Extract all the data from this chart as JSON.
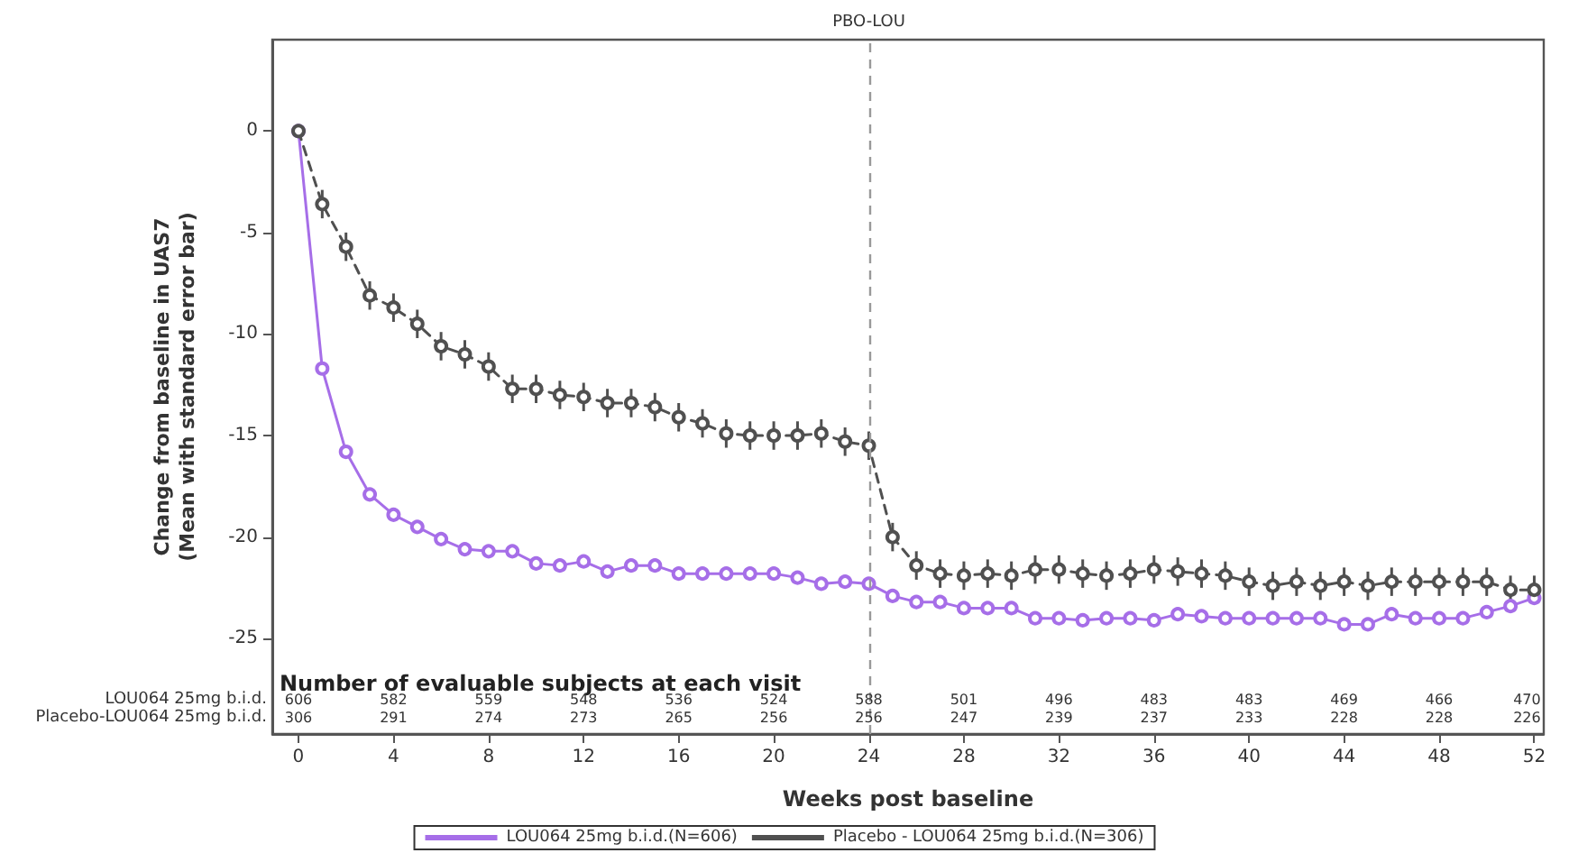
{
  "chart_data": {
    "type": "line",
    "xlabel": "Weeks post baseline",
    "ylabel": "Change from baseline in UAS7\n(Mean with standard error bar)",
    "x": [
      0,
      1,
      2,
      3,
      4,
      5,
      6,
      7,
      8,
      9,
      10,
      11,
      12,
      13,
      14,
      15,
      16,
      17,
      18,
      19,
      20,
      21,
      22,
      23,
      24,
      25,
      26,
      27,
      28,
      29,
      30,
      31,
      32,
      33,
      34,
      35,
      36,
      37,
      38,
      39,
      40,
      41,
      42,
      43,
      44,
      45,
      46,
      47,
      48,
      49,
      50,
      51,
      52
    ],
    "series": [
      {
        "name": "LOU064 25mg b.i.d.(N=606)",
        "color": "#a66ee8",
        "values": [
          0,
          -11.7,
          -15.8,
          -17.9,
          -18.9,
          -19.5,
          -20.1,
          -20.6,
          -20.7,
          -20.7,
          -21.3,
          -21.4,
          -21.2,
          -21.7,
          -21.4,
          -21.4,
          -21.8,
          -21.8,
          -21.8,
          -21.8,
          -21.8,
          -22.0,
          -22.3,
          -22.2,
          -22.3,
          -22.9,
          -23.2,
          -23.2,
          -23.5,
          -23.5,
          -23.5,
          -24.0,
          -24.0,
          -24.1,
          -24.0,
          -24.0,
          -24.1,
          -23.8,
          -23.9,
          -24.0,
          -24.0,
          -24.0,
          -24.0,
          -24.0,
          -24.3,
          -24.3,
          -23.8,
          -24.0,
          -24.0,
          -24.0,
          -23.7,
          -23.4,
          -23.0
        ]
      },
      {
        "name": "Placebo - LOU064 25mg b.i.d.(N=306)",
        "color": "#505050",
        "line_style": "dashed",
        "values": [
          0,
          -3.6,
          -5.7,
          -8.1,
          -8.7,
          -9.5,
          -10.6,
          -11.0,
          -11.6,
          -12.7,
          -12.7,
          -13.0,
          -13.1,
          -13.4,
          -13.4,
          -13.6,
          -14.1,
          -14.4,
          -14.9,
          -15.0,
          -15.0,
          -15.0,
          -14.9,
          -15.3,
          -15.5,
          -20.0,
          -21.4,
          -21.8,
          -21.9,
          -21.8,
          -21.9,
          -21.6,
          -21.6,
          -21.8,
          -21.9,
          -21.8,
          -21.6,
          -21.7,
          -21.8,
          -21.9,
          -22.2,
          -22.4,
          -22.2,
          -22.4,
          -22.2,
          -22.4,
          -22.2,
          -22.2,
          -22.2,
          -22.2,
          -22.2,
          -22.6,
          -22.6
        ],
        "errors": [
          null,
          0.7,
          0.7,
          0.7,
          0.7,
          0.7,
          0.7,
          0.7,
          0.7,
          0.7,
          0.7,
          0.7,
          0.7,
          0.7,
          0.7,
          0.7,
          0.7,
          0.7,
          0.7,
          0.7,
          0.7,
          0.7,
          0.7,
          0.7,
          0.7,
          0.7,
          0.7,
          0.7,
          0.7,
          0.7,
          0.7,
          0.7,
          0.7,
          0.7,
          0.7,
          0.7,
          0.7,
          0.7,
          0.7,
          0.7,
          0.7,
          0.7,
          0.7,
          0.7,
          0.7,
          0.7,
          0.7,
          0.7,
          0.7,
          0.7,
          0.7,
          0.7,
          0.7
        ]
      }
    ],
    "xlim": [
      -1.1,
      52.4
    ],
    "xticks": [
      0,
      4,
      8,
      12,
      16,
      20,
      24,
      28,
      32,
      36,
      40,
      44,
      48,
      52
    ],
    "ylim": [
      -29.7,
      4.5
    ],
    "yticks": [
      -25,
      -20,
      -15,
      -10,
      -5,
      0
    ],
    "ref_lines": [
      {
        "axis": "x",
        "value": 24,
        "label": "PBO-LOU",
        "color": "#999999",
        "line_style": "dashed"
      }
    ],
    "marker": "circle",
    "line_style": "solid",
    "grid": false,
    "legend": "bottom",
    "annotations": [
      "Number of evaluable subjects at each visit",
      "LOU064 25mg b.i.d.",
      "606",
      "582",
      "559",
      "548",
      "536",
      "524",
      "588",
      "501",
      "496",
      "483",
      "483",
      "469",
      "466",
      "470",
      "Placebo-LOU064 25mg b.i.d.",
      "306",
      "291",
      "274",
      "273",
      "265",
      "256",
      "256",
      "247",
      "239",
      "237",
      "233",
      "228",
      "228",
      "226"
    ]
  }
}
